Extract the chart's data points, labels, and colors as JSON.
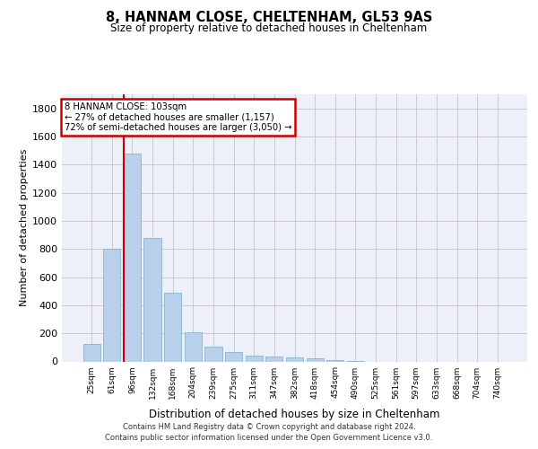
{
  "title": "8, HANNAM CLOSE, CHELTENHAM, GL53 9AS",
  "subtitle": "Size of property relative to detached houses in Cheltenham",
  "xlabel": "Distribution of detached houses by size in Cheltenham",
  "ylabel": "Number of detached properties",
  "categories": [
    "25sqm",
    "61sqm",
    "96sqm",
    "132sqm",
    "168sqm",
    "204sqm",
    "239sqm",
    "275sqm",
    "311sqm",
    "347sqm",
    "382sqm",
    "418sqm",
    "454sqm",
    "490sqm",
    "525sqm",
    "561sqm",
    "597sqm",
    "633sqm",
    "668sqm",
    "704sqm",
    "740sqm"
  ],
  "values": [
    125,
    800,
    1480,
    880,
    490,
    205,
    105,
    65,
    40,
    35,
    30,
    20,
    10,
    5,
    0,
    0,
    0,
    0,
    0,
    0,
    0
  ],
  "bar_color": "#b8d0ea",
  "bar_edge_color": "#7aaac8",
  "grid_color": "#c8c8d0",
  "bg_color": "#edf0f8",
  "red_line_index": 2,
  "annotation_text": "8 HANNAM CLOSE: 103sqm\n← 27% of detached houses are smaller (1,157)\n72% of semi-detached houses are larger (3,050) →",
  "annotation_box_color": "#ffffff",
  "annotation_border_color": "#cc0000",
  "footer": "Contains HM Land Registry data © Crown copyright and database right 2024.\nContains public sector information licensed under the Open Government Licence v3.0.",
  "ylim": [
    0,
    1900
  ],
  "yticks": [
    0,
    200,
    400,
    600,
    800,
    1000,
    1200,
    1400,
    1600,
    1800
  ]
}
